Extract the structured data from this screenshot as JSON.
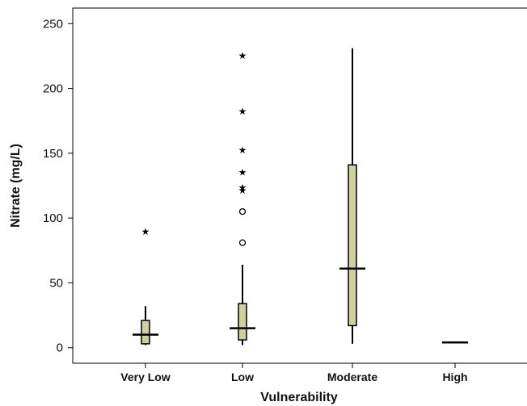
{
  "chart_data": {
    "type": "boxplot",
    "xlabel": "Vulnerability",
    "ylabel": "Nitrate (mg/L)",
    "ylim": [
      -12,
      262
    ],
    "yticks": [
      0,
      50,
      100,
      150,
      200,
      250
    ],
    "categories": [
      "Very Low",
      "Low",
      "Moderate",
      "High"
    ],
    "box_color": "#cfcf9f",
    "boxes": [
      {
        "category": "Very Low",
        "min": 2,
        "q1": 3,
        "median": 10,
        "q3": 21,
        "max": 32,
        "outliers": [],
        "extremes": [
          90
        ]
      },
      {
        "category": "Low",
        "min": 2,
        "q1": 6,
        "median": 15,
        "q3": 34,
        "max": 64,
        "outliers": [
          81,
          105
        ],
        "extremes": [
          122,
          124,
          136,
          153,
          183,
          226
        ]
      },
      {
        "category": "Moderate",
        "min": 3,
        "q1": 17,
        "median": 61,
        "q3": 141,
        "max": 231,
        "outliers": [],
        "extremes": []
      },
      {
        "category": "High",
        "min": 4,
        "q1": 4,
        "median": 4,
        "q3": 4,
        "max": 4,
        "outliers": [],
        "extremes": []
      }
    ]
  }
}
